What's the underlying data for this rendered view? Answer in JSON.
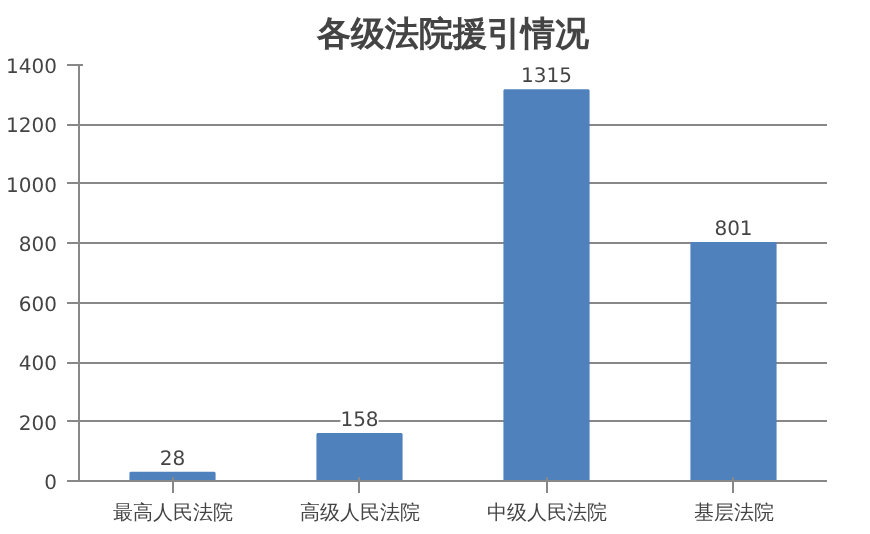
{
  "chart_data": {
    "type": "bar",
    "title": "各级法院援引情况",
    "categories": [
      "最高人民法院",
      "高级人民法院",
      "中级人民法院",
      "基层法院"
    ],
    "values": [
      28,
      158,
      1315,
      801
    ],
    "color": "#4f81bd",
    "ylim": [
      0,
      1400
    ],
    "yticks": [
      0,
      200,
      400,
      600,
      800,
      1000,
      1200,
      1400
    ],
    "grid": "y",
    "data_labels": true
  }
}
